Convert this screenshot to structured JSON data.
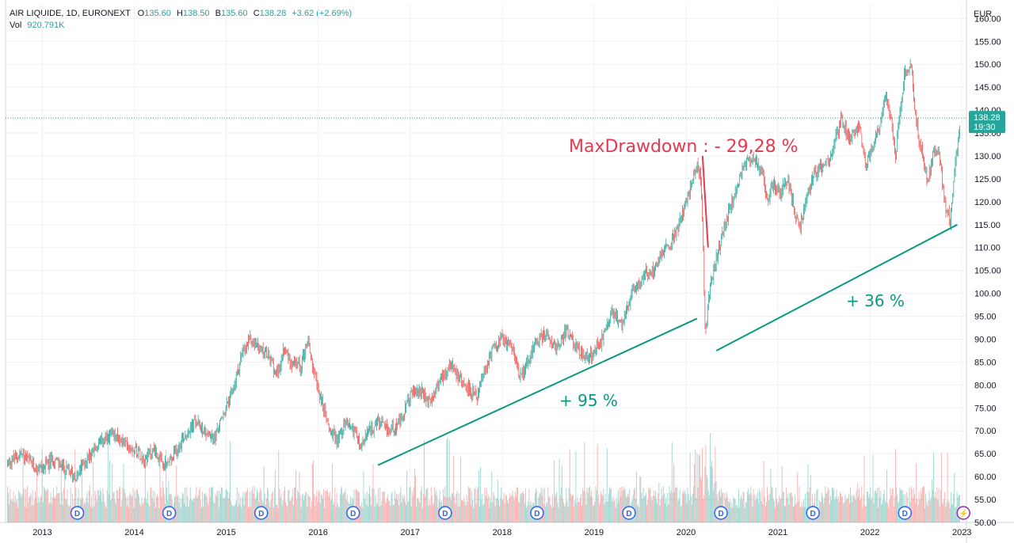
{
  "header": {
    "symbol": "AIR LIQUIDE, 1D, EURONEXT",
    "open_label": "O",
    "open": "135.60",
    "high_label": "H",
    "high": "138.50",
    "low_label": "B",
    "low": "135.60",
    "close_label": "C",
    "close": "138.28",
    "change": "+3.62 (+2.69%)",
    "vol_label": "Vol",
    "vol": "920.791K"
  },
  "colors": {
    "up": "#26a69a",
    "down": "#ef5350",
    "annotation_red": "#e53950",
    "annotation_green": "#089981",
    "grid": "#eef0f3",
    "text": "#131722"
  },
  "chart_data": {
    "type": "candlestick",
    "currency": "EUR",
    "last_price_label": "138.28",
    "last_time_label": "19:30",
    "ylim": [
      50,
      163
    ],
    "yticks": [
      "50.00",
      "55.00",
      "60.00",
      "65.00",
      "70.00",
      "75.00",
      "80.00",
      "85.00",
      "90.00",
      "95.00",
      "100.00",
      "105.00",
      "110.00",
      "115.00",
      "120.00",
      "125.00",
      "130.00",
      "135.00",
      "140.00",
      "145.00",
      "150.00",
      "155.00",
      "160.00"
    ],
    "xlim": [
      2012.6,
      2023.05
    ],
    "xticks": [
      "2013",
      "2014",
      "2015",
      "2016",
      "2017",
      "2018",
      "2019",
      "2020",
      "2021",
      "2022",
      "2023"
    ],
    "price_path": [
      [
        2012.6,
        63
      ],
      [
        2012.75,
        65
      ],
      [
        2012.9,
        62
      ],
      [
        2013.0,
        62
      ],
      [
        2013.1,
        64
      ],
      [
        2013.2,
        62
      ],
      [
        2013.35,
        60
      ],
      [
        2013.5,
        65
      ],
      [
        2013.6,
        67
      ],
      [
        2013.75,
        69
      ],
      [
        2013.9,
        67
      ],
      [
        2014.0,
        66
      ],
      [
        2014.1,
        64
      ],
      [
        2014.2,
        66
      ],
      [
        2014.3,
        62
      ],
      [
        2014.4,
        64
      ],
      [
        2014.5,
        68
      ],
      [
        2014.65,
        72
      ],
      [
        2014.75,
        70
      ],
      [
        2014.85,
        68
      ],
      [
        2014.95,
        73
      ],
      [
        2015.05,
        78
      ],
      [
        2015.15,
        86
      ],
      [
        2015.25,
        90
      ],
      [
        2015.35,
        88
      ],
      [
        2015.45,
        86
      ],
      [
        2015.55,
        82
      ],
      [
        2015.62,
        88
      ],
      [
        2015.7,
        85
      ],
      [
        2015.8,
        84
      ],
      [
        2015.88,
        90
      ],
      [
        2015.95,
        82
      ],
      [
        2016.05,
        75
      ],
      [
        2016.12,
        70
      ],
      [
        2016.2,
        68
      ],
      [
        2016.3,
        72
      ],
      [
        2016.4,
        70
      ],
      [
        2016.45,
        66
      ],
      [
        2016.55,
        70
      ],
      [
        2016.65,
        72
      ],
      [
        2016.75,
        70
      ],
      [
        2016.9,
        72
      ],
      [
        2017.0,
        78
      ],
      [
        2017.1,
        79
      ],
      [
        2017.2,
        76
      ],
      [
        2017.35,
        82
      ],
      [
        2017.45,
        85
      ],
      [
        2017.55,
        81
      ],
      [
        2017.65,
        79
      ],
      [
        2017.72,
        77
      ],
      [
        2017.8,
        82
      ],
      [
        2017.9,
        88
      ],
      [
        2018.0,
        90
      ],
      [
        2018.1,
        89
      ],
      [
        2018.15,
        85
      ],
      [
        2018.2,
        82
      ],
      [
        2018.3,
        86
      ],
      [
        2018.4,
        90
      ],
      [
        2018.5,
        91
      ],
      [
        2018.6,
        88
      ],
      [
        2018.7,
        92
      ],
      [
        2018.8,
        89
      ],
      [
        2018.9,
        86
      ],
      [
        2019.0,
        87
      ],
      [
        2019.1,
        90
      ],
      [
        2019.2,
        96
      ],
      [
        2019.3,
        93
      ],
      [
        2019.35,
        96
      ],
      [
        2019.45,
        101
      ],
      [
        2019.55,
        104
      ],
      [
        2019.65,
        105
      ],
      [
        2019.75,
        109
      ],
      [
        2019.85,
        111
      ],
      [
        2019.95,
        116
      ],
      [
        2020.05,
        122
      ],
      [
        2020.12,
        128
      ],
      [
        2020.17,
        126
      ],
      [
        2020.2,
        110
      ],
      [
        2020.22,
        90
      ],
      [
        2020.25,
        98
      ],
      [
        2020.3,
        104
      ],
      [
        2020.35,
        108
      ],
      [
        2020.45,
        116
      ],
      [
        2020.55,
        122
      ],
      [
        2020.65,
        128
      ],
      [
        2020.75,
        130
      ],
      [
        2020.85,
        126
      ],
      [
        2020.9,
        120
      ],
      [
        2020.95,
        124
      ],
      [
        2021.05,
        122
      ],
      [
        2021.12,
        125
      ],
      [
        2021.2,
        118
      ],
      [
        2021.25,
        114
      ],
      [
        2021.32,
        120
      ],
      [
        2021.4,
        126
      ],
      [
        2021.5,
        128
      ],
      [
        2021.6,
        130
      ],
      [
        2021.7,
        138
      ],
      [
        2021.8,
        134
      ],
      [
        2021.9,
        137
      ],
      [
        2021.97,
        128
      ],
      [
        2022.05,
        132
      ],
      [
        2022.15,
        138
      ],
      [
        2022.2,
        144
      ],
      [
        2022.25,
        138
      ],
      [
        2022.3,
        130
      ],
      [
        2022.35,
        140
      ],
      [
        2022.4,
        148
      ],
      [
        2022.47,
        150
      ],
      [
        2022.5,
        142
      ],
      [
        2022.55,
        134
      ],
      [
        2022.6,
        130
      ],
      [
        2022.65,
        124
      ],
      [
        2022.72,
        132
      ],
      [
        2022.78,
        130
      ],
      [
        2022.85,
        118
      ],
      [
        2022.9,
        116
      ],
      [
        2022.95,
        128
      ],
      [
        2023.0,
        136
      ],
      [
        2023.05,
        138
      ]
    ],
    "annotations": [
      {
        "text": "MaxDrawdown : - 29,28 %",
        "color_key": "annotation_red"
      },
      {
        "text": "+ 95 %",
        "color_key": "annotation_green"
      },
      {
        "text": "+ 36 %",
        "color_key": "annotation_green"
      }
    ],
    "trendlines": [
      {
        "from": [
          2016.65,
          62.5
        ],
        "to": [
          2020.12,
          94.5
        ],
        "color_key": "annotation_green"
      },
      {
        "from": [
          2020.33,
          87.5
        ],
        "to": [
          2022.95,
          115
        ],
        "color_key": "annotation_green"
      },
      {
        "from": [
          2020.18,
          130
        ],
        "to": [
          2020.24,
          110
        ],
        "color_key": "annotation_red"
      }
    ],
    "dividend_marker": "D",
    "dividend_x": [
      2013.38,
      2014.38,
      2015.38,
      2016.38,
      2017.38,
      2018.38,
      2019.38,
      2020.38,
      2021.38,
      2022.38
    ],
    "lightning_marker": "⚡",
    "lightning_x": [
      2023.0
    ]
  }
}
